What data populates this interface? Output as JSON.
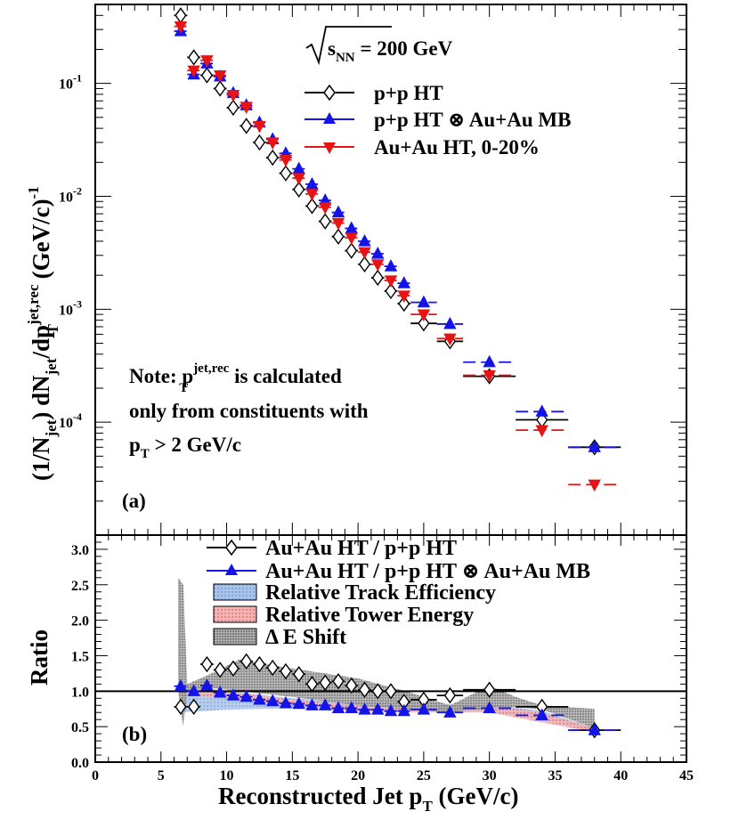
{
  "chart_data": [
    {
      "type": "scatter",
      "panel": "(a)",
      "ylabel": "(1/N_jet) dN_jet/dp_T^jet,rec (GeV/c)^-1",
      "ylabel_parts": {
        "a": "(1/N",
        "a_sub": "jet",
        "b": ") dN",
        "b_sub": "jet",
        "c": "/dp",
        "c_sup": "jet,rec",
        "c_sub": "T",
        "d": " (GeV/c)",
        "d_sup": "-1"
      },
      "yscale": "log",
      "ylim": [
        1e-05,
        0.5
      ],
      "xlim": [
        0,
        45
      ],
      "yticks": [
        {
          "v": 0.1,
          "base": "10",
          "exp": "-1"
        },
        {
          "v": 0.01,
          "base": "10",
          "exp": "-2"
        },
        {
          "v": 0.001,
          "base": "10",
          "exp": "-3"
        },
        {
          "v": 0.0001,
          "base": "10",
          "exp": "-4"
        }
      ],
      "energy_label": {
        "pre": "s",
        "sub": "NN",
        "post": " = 200 GeV"
      },
      "note_lines": {
        "l1_a": "Note: p",
        "l1_sup": "jet,rec",
        "l1_sub": "T",
        "l1_b": " is calculated",
        "l2": "only from constituents with",
        "l3_a": "p",
        "l3_sub": "T",
        "l3_b": " > 2 GeV/c"
      },
      "series": [
        {
          "name": "p+p HT",
          "color": "#000000",
          "marker": "open-diamond",
          "x": [
            6.5,
            7.5,
            8.5,
            9.5,
            10.5,
            11.5,
            12.5,
            13.5,
            14.5,
            15.5,
            16.5,
            17.5,
            18.5,
            19.5,
            20.5,
            21.5,
            22.5,
            23.5,
            25,
            27,
            30,
            34,
            38
          ],
          "y": [
            0.4,
            0.17,
            0.118,
            0.09,
            0.061,
            0.042,
            0.03,
            0.022,
            0.016,
            0.0115,
            0.0082,
            0.006,
            0.0044,
            0.0033,
            0.0025,
            0.0019,
            0.00145,
            0.00112,
            0.00075,
            0.00052,
            0.000255,
            0.000105,
            6e-05
          ],
          "xerr": [
            0.5,
            0.5,
            0.5,
            0.5,
            0.5,
            0.5,
            0.5,
            0.5,
            0.5,
            0.5,
            0.5,
            0.5,
            0.5,
            0.5,
            0.5,
            0.5,
            0.5,
            0.5,
            1,
            1,
            2,
            2,
            2
          ]
        },
        {
          "name": "p+p HT ⊗ Au+Au MB",
          "color": "#1414e6",
          "marker": "filled-triangle-up",
          "x": [
            6.5,
            7.5,
            8.5,
            9.5,
            10.5,
            11.5,
            12.5,
            13.5,
            14.5,
            15.5,
            16.5,
            17.5,
            18.5,
            19.5,
            20.5,
            21.5,
            22.5,
            23.5,
            25,
            27,
            30,
            34,
            38
          ],
          "y": [
            0.29,
            0.12,
            0.15,
            0.115,
            0.082,
            0.064,
            0.045,
            0.032,
            0.024,
            0.0175,
            0.0128,
            0.0092,
            0.0072,
            0.0052,
            0.004,
            0.0031,
            0.0024,
            0.0017,
            0.00115,
            0.00074,
            0.00034,
            0.000124,
            6e-05
          ],
          "xerr": [
            0.5,
            0.5,
            0.5,
            0.5,
            0.5,
            0.5,
            0.5,
            0.5,
            0.5,
            0.5,
            0.5,
            0.5,
            0.5,
            0.5,
            0.5,
            0.5,
            0.5,
            0.5,
            1,
            1,
            2,
            2,
            2
          ]
        },
        {
          "name": "Au+Au HT, 0-20%",
          "color": "#e61414",
          "marker": "filled-triangle-down",
          "x": [
            6.5,
            7.5,
            8.5,
            9.5,
            10.5,
            11.5,
            12.5,
            13.5,
            14.5,
            15.5,
            16.5,
            17.5,
            18.5,
            19.5,
            20.5,
            21.5,
            22.5,
            23.5,
            25,
            27,
            30,
            34,
            38
          ],
          "y": [
            0.32,
            0.13,
            0.16,
            0.118,
            0.079,
            0.062,
            0.042,
            0.03,
            0.021,
            0.0145,
            0.0105,
            0.008,
            0.0058,
            0.0043,
            0.0032,
            0.0025,
            0.0018,
            0.00132,
            0.0009,
            0.00055,
            0.00026,
            8.5e-05,
            2.8e-05
          ],
          "xerr": [
            0.5,
            0.5,
            0.5,
            0.5,
            0.5,
            0.5,
            0.5,
            0.5,
            0.5,
            0.5,
            0.5,
            0.5,
            0.5,
            0.5,
            0.5,
            0.5,
            0.5,
            0.5,
            1,
            1,
            2,
            2,
            2
          ]
        }
      ],
      "legend_loc": "top-right"
    },
    {
      "type": "scatter",
      "panel": "(b)",
      "xlabel_parts": {
        "a": "Reconstructed Jet p",
        "sub": "T",
        "b": " (GeV/c)"
      },
      "ylabel": "Ratio",
      "xlim": [
        0,
        45
      ],
      "ylim": [
        0,
        3.2
      ],
      "xticks": [
        "0",
        "5",
        "10",
        "15",
        "20",
        "25",
        "30",
        "35",
        "40",
        "45"
      ],
      "yticks": [
        "0.0",
        "0.5",
        "1.0",
        "1.5",
        "2.0",
        "2.5",
        "3.0"
      ],
      "reference_line": 1.0,
      "series": [
        {
          "name": "Au+Au HT / p+p HT",
          "color": "#000000",
          "marker": "open-diamond",
          "x": [
            6.5,
            7.5,
            8.5,
            9.5,
            10.5,
            11.5,
            12.5,
            13.5,
            14.5,
            15.5,
            16.5,
            17.5,
            18.5,
            19.5,
            20.5,
            21.5,
            22.5,
            23.5,
            25,
            27,
            30,
            34,
            38
          ],
          "y": [
            0.78,
            0.78,
            1.38,
            1.3,
            1.32,
            1.42,
            1.38,
            1.33,
            1.28,
            1.24,
            1.1,
            1.12,
            1.14,
            1.08,
            1.02,
            1.0,
            1.0,
            0.85,
            0.88,
            0.94,
            1.02,
            0.78,
            0.45
          ],
          "xerr": [
            0.5,
            0.5,
            0.5,
            0.5,
            0.5,
            0.5,
            0.5,
            0.5,
            0.5,
            0.5,
            0.5,
            0.5,
            0.5,
            0.5,
            0.5,
            0.5,
            0.5,
            0.5,
            1,
            1,
            2,
            2,
            2
          ]
        },
        {
          "name": "Au+Au HT / p+p HT ⊗ Au+Au MB",
          "color": "#1414e6",
          "marker": "filled-triangle-up",
          "x": [
            6.5,
            7.5,
            8.5,
            9.5,
            10.5,
            11.5,
            12.5,
            13.5,
            14.5,
            15.5,
            16.5,
            17.5,
            18.5,
            19.5,
            20.5,
            21.5,
            22.5,
            23.5,
            25,
            27,
            30,
            34,
            38
          ],
          "y": [
            1.07,
            1.0,
            1.08,
            0.98,
            0.94,
            0.92,
            0.88,
            0.86,
            0.83,
            0.82,
            0.8,
            0.8,
            0.76,
            0.76,
            0.74,
            0.74,
            0.72,
            0.72,
            0.74,
            0.7,
            0.76,
            0.66,
            0.45
          ],
          "xerr": [
            0.5,
            0.5,
            0.5,
            0.5,
            0.5,
            0.5,
            0.5,
            0.5,
            0.5,
            0.5,
            0.5,
            0.5,
            0.5,
            0.5,
            0.5,
            0.5,
            0.5,
            0.5,
            1,
            1,
            2,
            2,
            2
          ]
        }
      ],
      "bands": [
        {
          "name": "Relative Track Efficiency",
          "color": "#a9c4ea",
          "x": [
            6.5,
            10,
            15,
            20,
            25,
            30,
            34,
            38
          ],
          "lo": [
            0.7,
            0.74,
            0.76,
            0.72,
            0.72,
            0.72,
            0.6,
            0.42
          ],
          "hi": [
            1.1,
            1.0,
            0.9,
            0.84,
            0.82,
            0.82,
            0.72,
            0.48
          ]
        },
        {
          "name": "Relative Tower Energy",
          "color": "#f0a8a8",
          "x": [
            6.5,
            10,
            15,
            20,
            25,
            30,
            34,
            38
          ],
          "lo": [
            0.95,
            0.9,
            0.8,
            0.7,
            0.7,
            0.7,
            0.56,
            0.42
          ],
          "hi": [
            1.1,
            1.0,
            0.88,
            0.8,
            0.8,
            0.8,
            0.7,
            0.48
          ]
        },
        {
          "name": "Δ E Shift",
          "color": "#9a9a9a",
          "x": [
            6.3,
            6.7,
            7.0,
            8.5,
            11,
            15,
            20,
            24,
            27,
            30,
            32,
            34,
            38
          ],
          "lo": [
            1.0,
            0.5,
            1.0,
            1.05,
            1.0,
            0.92,
            0.8,
            0.74,
            0.7,
            0.76,
            0.78,
            0.74,
            0.48
          ],
          "hi": [
            2.6,
            2.5,
            1.1,
            1.22,
            1.45,
            1.32,
            1.18,
            0.98,
            0.8,
            1.08,
            0.92,
            0.8,
            0.75
          ]
        }
      ],
      "legend_loc": "top"
    }
  ]
}
